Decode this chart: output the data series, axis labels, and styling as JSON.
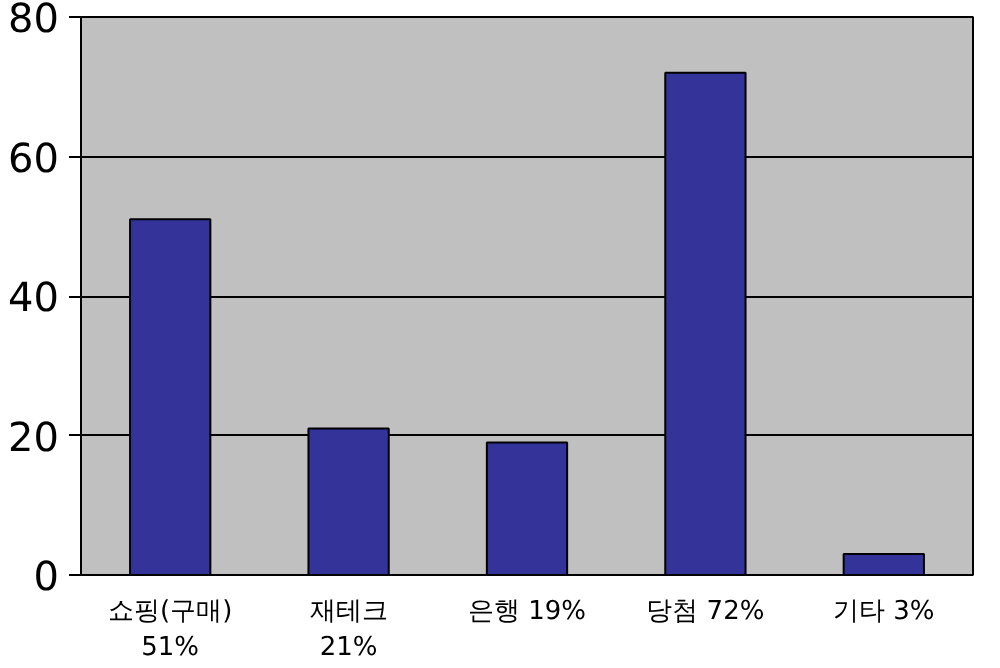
{
  "chart_data": {
    "type": "bar",
    "categories": [
      "쇼핑(구매)\n51%",
      "재테크\n21%",
      "은행 19%",
      "당첨 72%",
      "기타 3%"
    ],
    "values": [
      51,
      21,
      19,
      72,
      3
    ],
    "color": "#333399",
    "ylim": [
      0,
      80
    ],
    "yticks": [
      0,
      20,
      40,
      60,
      80
    ],
    "grid": "y"
  }
}
